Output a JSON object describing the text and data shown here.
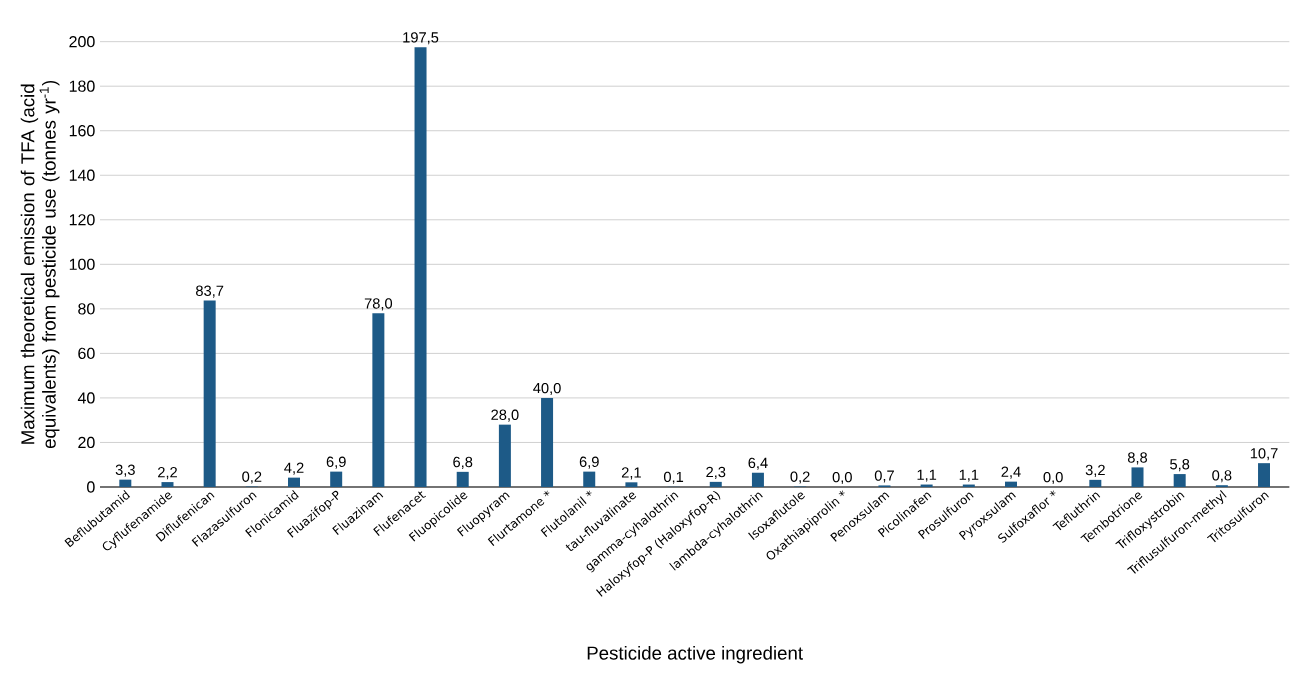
{
  "chart_data": {
    "type": "bar",
    "xlabel": "Pesticide active ingredient",
    "ylabel": "Maximum theoretical emission of TFA (acid equivalents) from pesticide use (tonnes yr$^{-1}$)",
    "categories": [
      "Beflubutamid",
      "Cyflufenamide",
      "Diflufenican",
      "Flazasulfuron",
      "Flonicamid",
      "Fluazifop-P",
      "Fluazinam",
      "Flufenacet",
      "Fluopicolide",
      "Fluopyram",
      "Flurtamone *",
      "Flutolanil *",
      "tau-fluvalinate",
      "gamma-cyhalothrin",
      "Haloxyfop-P (Haloxyfop-R)",
      "lambda-cyhalothrin",
      "Isoxaflutole",
      "Oxathiapiprolin *",
      "Penoxsulam",
      "Picolinafen",
      "Prosulfuron",
      "Pyroxsulam",
      "Sulfoxaflor *",
      "Tefluthrin",
      "Tembotrione",
      "Trifloxystrobin",
      "Triflusulfuron-methyl",
      "Tritosulfuron"
    ],
    "values": [
      3.3,
      2.2,
      83.7,
      0.2,
      4.2,
      6.9,
      78.0,
      197.5,
      6.8,
      28.0,
      40.0,
      6.9,
      2.1,
      0.1,
      2.3,
      6.4,
      0.2,
      0.0,
      0.7,
      1.1,
      1.1,
      2.4,
      0.0,
      3.2,
      8.8,
      5.8,
      0.8,
      10.7
    ],
    "value_labels": [
      "3,3",
      "2,2",
      "83,7",
      "0,2",
      "4,2",
      "6,9",
      "78,0",
      "197,5",
      "6,8",
      "28,0",
      "40,0",
      "6,9",
      "2,1",
      "0,1",
      "2,3",
      "6,4",
      "0,2",
      "0,0",
      "0,7",
      "1,1",
      "1,1",
      "2,4",
      "0,0",
      "3,2",
      "8,8",
      "5,8",
      "0,8",
      "10,7"
    ],
    "color": "#1d5a87",
    "ylim": [
      0,
      200
    ],
    "yticks": [
      0,
      20,
      40,
      60,
      80,
      100,
      120,
      140,
      160,
      180,
      200
    ],
    "grid": "y"
  }
}
